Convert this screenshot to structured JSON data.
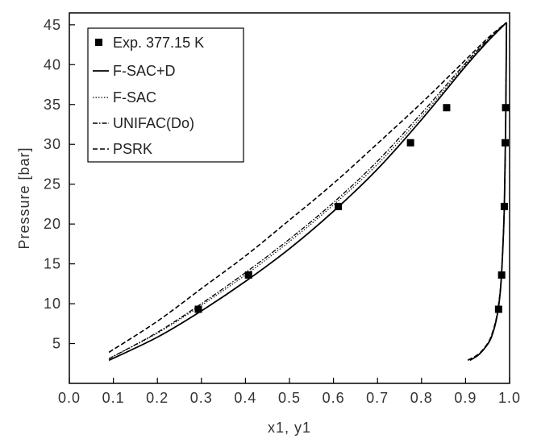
{
  "chart_data": {
    "type": "line",
    "xlabel": "x1, y1",
    "ylabel": "Pressure [bar]",
    "xlim": [
      0.0,
      1.0
    ],
    "ylim": [
      0.0,
      46.5
    ],
    "xticks": [
      "0.0",
      "0.1",
      "0.2",
      "0.3",
      "0.4",
      "0.5",
      "0.6",
      "0.7",
      "0.8",
      "0.9",
      "1.0"
    ],
    "yticks": [
      "5",
      "10",
      "15",
      "20",
      "25",
      "30",
      "35",
      "40",
      "45"
    ],
    "grid": false,
    "legend_position": "top-left",
    "legend": [
      {
        "label": "Exp. 377.15 K",
        "marker": "square"
      },
      {
        "label": "F-SAC+D",
        "dash": "solid"
      },
      {
        "label": "F-SAC",
        "dash": "dotted"
      },
      {
        "label": "UNIFAC(Do)",
        "dash": "dash-dot"
      },
      {
        "label": "PSRK",
        "dash": "dashed"
      }
    ],
    "experimental": {
      "name": "Exp. 377.15 K",
      "points": [
        {
          "x": 0.293,
          "y": 9.3
        },
        {
          "x": 0.407,
          "y": 13.6
        },
        {
          "x": 0.611,
          "y": 22.2
        },
        {
          "x": 0.775,
          "y": 30.2
        },
        {
          "x": 0.857,
          "y": 34.6
        },
        {
          "x": 0.975,
          "y": 9.3
        },
        {
          "x": 0.982,
          "y": 13.6
        },
        {
          "x": 0.988,
          "y": 22.2
        },
        {
          "x": 0.99,
          "y": 30.2
        },
        {
          "x": 0.991,
          "y": 34.6
        }
      ]
    },
    "series": [
      {
        "name": "F-SAC+D",
        "bubble": {
          "x": [
            0.09,
            0.2,
            0.3,
            0.4,
            0.5,
            0.6,
            0.7,
            0.8,
            0.9,
            0.95,
            0.993
          ],
          "y": [
            2.9,
            5.8,
            9.1,
            12.8,
            16.9,
            21.6,
            26.9,
            33.1,
            39.8,
            42.9,
            45.3
          ]
        },
        "dew": {
          "x": [
            0.91,
            0.93,
            0.95,
            0.96,
            0.97,
            0.978,
            0.983,
            0.988,
            0.991,
            0.993
          ],
          "y": [
            2.9,
            3.6,
            4.9,
            6.0,
            8.0,
            11.0,
            15.0,
            22.0,
            32.0,
            45.3
          ]
        }
      },
      {
        "name": "F-SAC",
        "bubble": {
          "x": [
            0.09,
            0.2,
            0.3,
            0.4,
            0.5,
            0.6,
            0.7,
            0.8,
            0.9,
            0.95,
            0.993
          ],
          "y": [
            3.1,
            6.3,
            9.8,
            13.6,
            17.8,
            22.4,
            27.5,
            33.5,
            40.0,
            43.0,
            45.3
          ]
        },
        "dew": {
          "x": [
            0.91,
            0.93,
            0.95,
            0.96,
            0.97,
            0.978,
            0.983,
            0.988,
            0.991,
            0.993
          ],
          "y": [
            2.9,
            3.6,
            4.9,
            6.0,
            8.0,
            11.0,
            15.0,
            22.0,
            32.0,
            45.3
          ]
        }
      },
      {
        "name": "UNIFAC(Do)",
        "bubble": {
          "x": [
            0.09,
            0.2,
            0.3,
            0.4,
            0.5,
            0.6,
            0.7,
            0.8,
            0.9,
            0.95,
            0.993
          ],
          "y": [
            3.1,
            6.4,
            10.0,
            13.9,
            18.1,
            22.7,
            27.9,
            33.9,
            40.2,
            43.1,
            45.3
          ]
        },
        "dew": {
          "x": [
            0.91,
            0.93,
            0.95,
            0.96,
            0.97,
            0.978,
            0.983,
            0.988,
            0.991,
            0.993
          ],
          "y": [
            2.9,
            3.6,
            4.9,
            6.0,
            8.0,
            11.0,
            15.0,
            22.0,
            32.0,
            45.3
          ]
        }
      },
      {
        "name": "PSRK",
        "bubble": {
          "x": [
            0.09,
            0.2,
            0.3,
            0.4,
            0.5,
            0.6,
            0.7,
            0.8,
            0.9,
            0.95,
            0.993
          ],
          "y": [
            3.9,
            7.8,
            11.9,
            16.0,
            20.5,
            25.1,
            30.1,
            35.2,
            40.6,
            43.3,
            45.3
          ]
        },
        "dew": {
          "x": [
            0.905,
            0.93,
            0.95,
            0.96,
            0.97,
            0.978,
            0.983,
            0.988,
            0.991,
            0.993
          ],
          "y": [
            2.9,
            3.7,
            5.0,
            6.2,
            8.2,
            11.2,
            15.2,
            22.2,
            32.2,
            45.3
          ]
        }
      }
    ]
  }
}
